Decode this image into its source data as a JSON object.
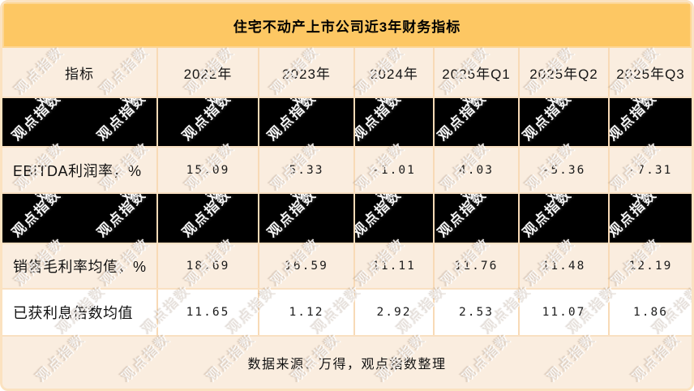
{
  "title": "住宅不动产上市公司近3年财务指标",
  "table": {
    "columns": [
      "指标",
      "2022年",
      "2023年",
      "2024年",
      "2025年Q1",
      "2025年Q2",
      "2025年Q3"
    ],
    "rows": [
      {
        "type": "redacted",
        "label": "",
        "values": [
          "",
          "",
          "",
          "",
          "",
          ""
        ]
      },
      {
        "type": "data",
        "label": "EBITDA利润率，%",
        "values": [
          "15.09",
          "5.33",
          "-1.01",
          "4.03",
          "-5.36",
          "-7.31"
        ]
      },
      {
        "type": "redacted",
        "label": "",
        "values": [
          "",
          "",
          "",
          "",
          "",
          ""
        ]
      },
      {
        "type": "data",
        "label": "销售毛利率均值，%",
        "values": [
          "18.69",
          "16.59",
          "11.11",
          "11.76",
          "11.48",
          "12.19"
        ]
      },
      {
        "type": "data",
        "label": "已获利息倍数均值",
        "values": [
          "11.65",
          "1.12",
          "2.92",
          "2.53",
          "11.07",
          "1.86"
        ]
      }
    ],
    "footer": "数据来源：万得，观点指数整理"
  },
  "watermark": {
    "text": "观点指数"
  },
  "colors": {
    "accent": "#FDC763",
    "cell_bg": "#FAEDDF",
    "divider": "#F8DAB6",
    "redacted": "#000000"
  },
  "chart_data": {
    "type": "table",
    "title": "住宅不动产上市公司近3年财务指标",
    "categories": [
      "2022年",
      "2023年",
      "2024年",
      "2025年Q1",
      "2025年Q2",
      "2025年Q3"
    ],
    "series": [
      {
        "name": "EBITDA利润率，%",
        "values": [
          15.09,
          5.33,
          -1.01,
          4.03,
          -5.36,
          -7.31
        ]
      },
      {
        "name": "销售毛利率均值，%",
        "values": [
          18.69,
          16.59,
          11.11,
          11.76,
          11.48,
          12.19
        ]
      },
      {
        "name": "已获利息倍数均值",
        "values": [
          11.65,
          1.12,
          2.92,
          2.53,
          11.07,
          1.86
        ]
      }
    ],
    "redacted_row_positions": [
      0,
      2
    ],
    "source_note": "数据来源：万得，观点指数整理"
  }
}
